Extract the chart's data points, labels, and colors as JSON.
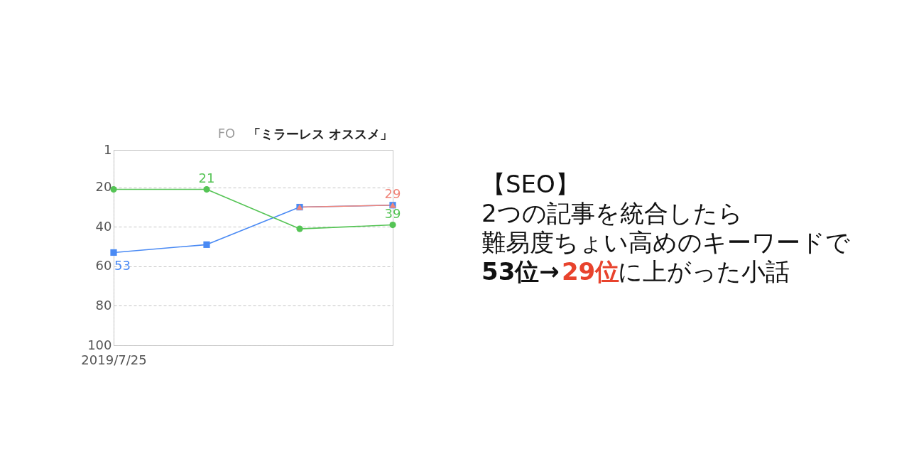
{
  "chart_data": [
    {
      "type": "line",
      "title": "「ミラーレス オススメ」",
      "annotations": [
        "FO"
      ],
      "categories": [
        "2019/7/25",
        null,
        null,
        null
      ],
      "ylim": [
        100,
        1
      ],
      "yticks": [
        100,
        80,
        60,
        40,
        20,
        1
      ],
      "grid": true,
      "series": [
        {
          "color": "#4a8af4",
          "marker": "square",
          "values": [
            53,
            49,
            30,
            29
          ],
          "value_labels": [
            "53",
            null,
            null,
            null
          ]
        },
        {
          "color": "#55c455",
          "marker": "circle",
          "values": [
            21,
            21,
            41,
            39
          ],
          "value_labels": [
            null,
            "21",
            null,
            "39"
          ]
        },
        {
          "color": "#f0857a",
          "marker": "triangle",
          "values": [
            null,
            null,
            30,
            29
          ],
          "value_labels": [
            null,
            null,
            null,
            "29"
          ]
        }
      ]
    },
    {
      "type": "other",
      "annotations": [
        "【SEO】",
        "2つの記事を統合したら",
        "難易度ちょい高めのキーワードで",
        "53位→",
        "29位",
        "に上がった小話"
      ]
    }
  ]
}
